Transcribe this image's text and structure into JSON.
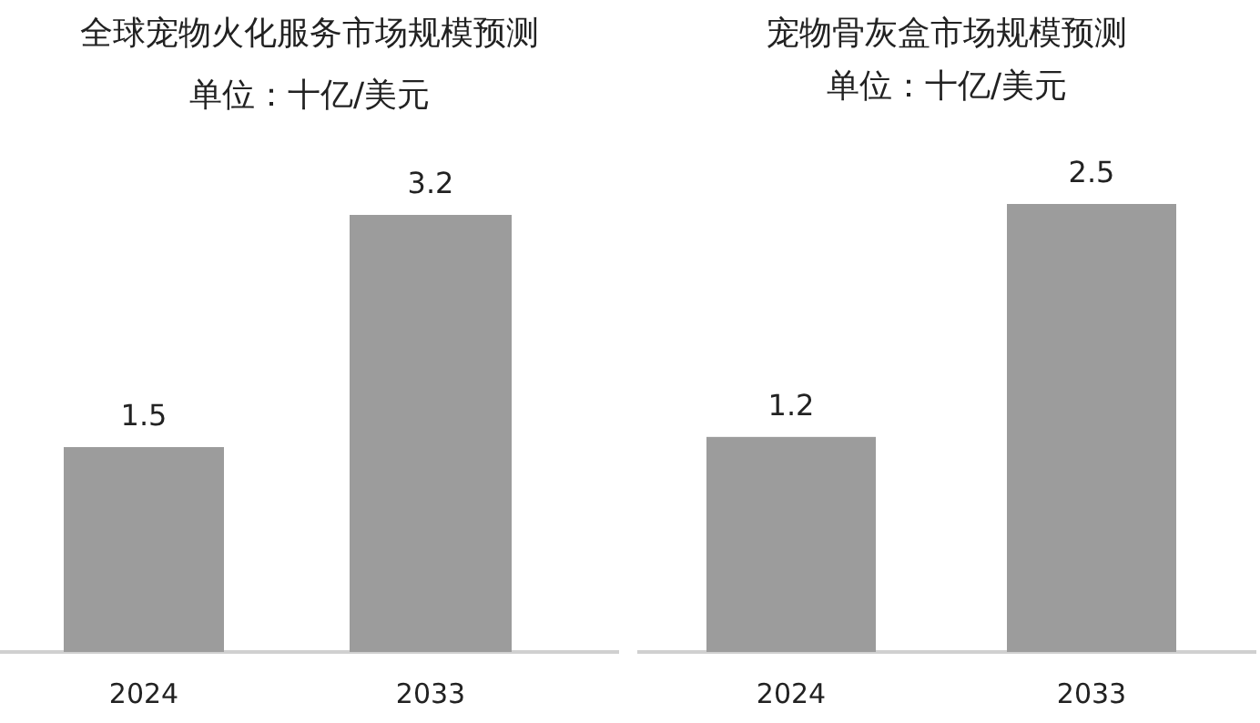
{
  "chart_data": [
    {
      "type": "bar",
      "title": "全球宠物火化服务市场规模预测",
      "subtitle": "单位：十亿/美元",
      "categories": [
        "2024",
        "2033"
      ],
      "values": [
        1.5,
        3.2
      ],
      "color": "#9c9c9c",
      "data_labels": true
    },
    {
      "type": "bar",
      "title": "宠物骨灰盒市场规模预测",
      "subtitle": "单位：十亿/美元",
      "categories": [
        "2024",
        "2033"
      ],
      "values": [
        1.2,
        2.5
      ],
      "color": "#9c9c9c",
      "data_labels": true
    }
  ]
}
